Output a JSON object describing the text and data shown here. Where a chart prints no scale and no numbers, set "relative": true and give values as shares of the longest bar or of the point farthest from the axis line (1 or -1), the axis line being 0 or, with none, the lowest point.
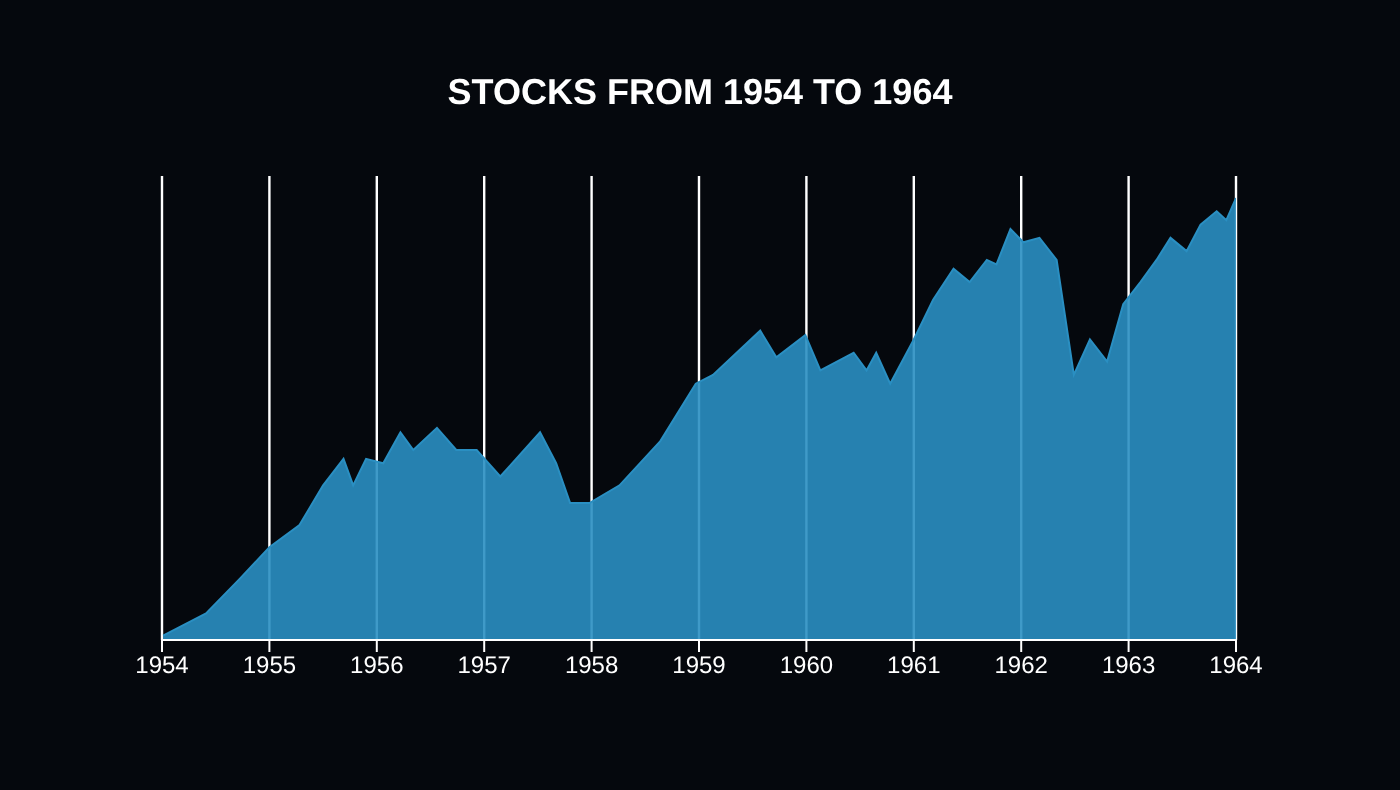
{
  "chart_data": {
    "type": "area",
    "title": "STOCKS FROM 1954 TO 1964",
    "relative": true,
    "color": "#2a8fc2",
    "grid": "x",
    "xlim": [
      1954,
      1964
    ],
    "xticks": [
      1954,
      1955,
      1956,
      1957,
      1958,
      1959,
      1960,
      1961,
      1962,
      1963,
      1964
    ],
    "x": [
      1954.01,
      1954.41,
      1954.73,
      1955.0,
      1955.28,
      1955.5,
      1955.69,
      1955.78,
      1955.9,
      1956.06,
      1956.22,
      1956.34,
      1956.56,
      1956.74,
      1956.93,
      1957.15,
      1957.52,
      1957.67,
      1957.8,
      1957.98,
      1958.26,
      1958.64,
      1958.97,
      1959.13,
      1959.57,
      1959.72,
      1959.99,
      1960.13,
      1960.44,
      1960.56,
      1960.65,
      1960.78,
      1961.0,
      1961.18,
      1961.37,
      1961.52,
      1961.68,
      1961.77,
      1961.9,
      1962.02,
      1962.17,
      1962.33,
      1962.49,
      1962.64,
      1962.8,
      1962.95,
      1963.11,
      1963.26,
      1963.39,
      1963.54,
      1963.67,
      1963.82,
      1963.91,
      1964.0
    ],
    "values": [
      0.01,
      0.06,
      0.14,
      0.21,
      0.26,
      0.35,
      0.41,
      0.35,
      0.41,
      0.4,
      0.47,
      0.43,
      0.48,
      0.43,
      0.43,
      0.37,
      0.47,
      0.4,
      0.31,
      0.31,
      0.35,
      0.45,
      0.58,
      0.6,
      0.7,
      0.64,
      0.69,
      0.61,
      0.65,
      0.61,
      0.65,
      0.58,
      0.68,
      0.77,
      0.84,
      0.81,
      0.86,
      0.85,
      0.93,
      0.9,
      0.91,
      0.86,
      0.6,
      0.68,
      0.63,
      0.76,
      0.81,
      0.86,
      0.91,
      0.88,
      0.94,
      0.97,
      0.95,
      1.0
    ]
  }
}
